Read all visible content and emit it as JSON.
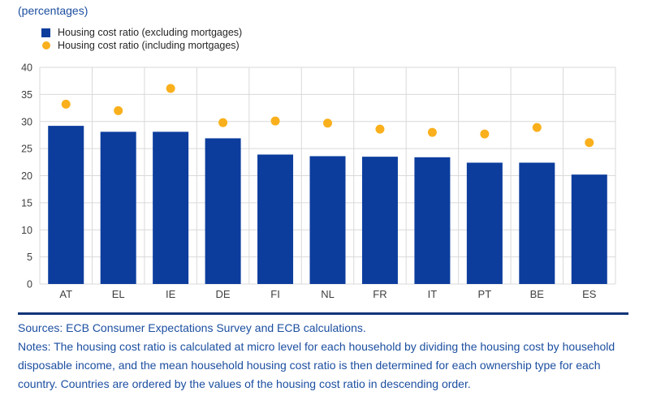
{
  "title": "(percentages)",
  "chart_data": {
    "type": "bar",
    "title": "(percentages)",
    "categories": [
      "AT",
      "EL",
      "IE",
      "DE",
      "FI",
      "NL",
      "FR",
      "IT",
      "PT",
      "BE",
      "ES"
    ],
    "series": [
      {
        "name": "Housing cost ratio (excluding mortgages)",
        "mark": "bar",
        "color": "#0c3d9d",
        "values": [
          29.2,
          28.1,
          28.1,
          26.9,
          23.9,
          23.6,
          23.5,
          23.4,
          22.4,
          22.4,
          20.2
        ]
      },
      {
        "name": "Housing cost ratio (including mortgages)",
        "mark": "scatter",
        "color": "#f9b01c",
        "values": [
          33.2,
          32.0,
          36.1,
          29.8,
          30.1,
          29.7,
          28.6,
          28.0,
          27.7,
          28.9,
          26.1
        ]
      }
    ],
    "xlabel": "",
    "ylabel": "",
    "ylim": [
      0,
      40
    ],
    "ytick_step": 5,
    "grid": true,
    "legend_position": "top-left"
  },
  "footer": {
    "sources": "Sources: ECB Consumer Expectations Survey and ECB calculations.",
    "notes": "Notes: The housing cost ratio is calculated at micro level for each household by dividing the housing cost by household disposable income, and the mean household housing cost ratio is then determined for each ownership type for each country. Countries are ordered by the values of the housing cost ratio in descending order."
  },
  "colors": {
    "bar": "#0c3d9d",
    "dot": "#f9b01c",
    "title_text": "#1c4fa0",
    "notes_text": "#1c4fa0",
    "separator": "#0f3478",
    "gridline": "#d9d9d9",
    "tick_text": "#404040",
    "legend_text": "#262626",
    "background": "#ffffff"
  }
}
